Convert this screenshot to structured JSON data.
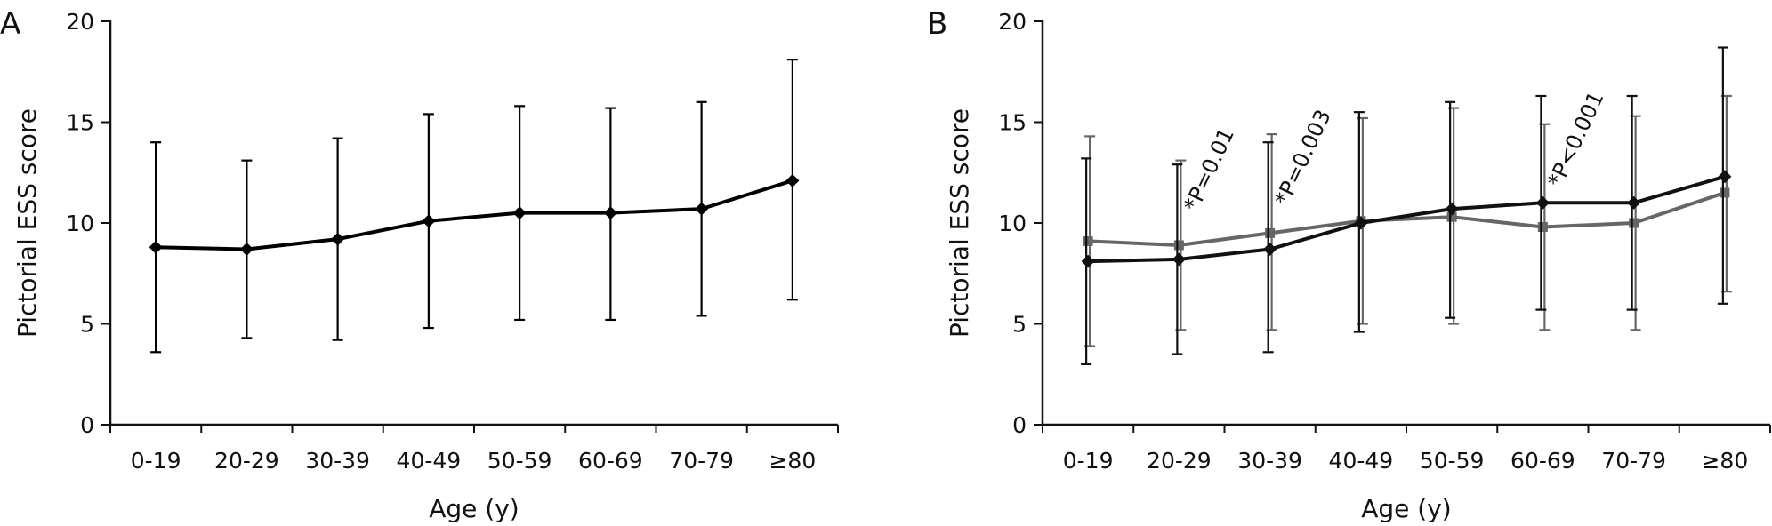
{
  "chart_data": [
    {
      "type": "line",
      "panel_label": "A",
      "xlabel": "Age (y)",
      "ylabel": "Pictorial ESS score",
      "ylim": [
        0,
        20
      ],
      "yticks": [
        "0",
        "5",
        "10",
        "15",
        "20"
      ],
      "categories": [
        "0-19",
        "20-29",
        "30-39",
        "40-49",
        "50-59",
        "60-69",
        "70-79",
        "≥80"
      ],
      "series": [
        {
          "color": "#000000",
          "marker": "diamond",
          "values": [
            8.8,
            8.7,
            9.2,
            10.1,
            10.5,
            10.5,
            10.7,
            12.1
          ],
          "error_low": [
            3.6,
            4.3,
            4.2,
            4.8,
            5.2,
            5.2,
            5.4,
            6.2
          ],
          "error_high": [
            14.0,
            13.1,
            14.2,
            15.4,
            15.8,
            15.7,
            16.0,
            18.1
          ]
        }
      ],
      "annotations": []
    },
    {
      "type": "line",
      "panel_label": "B",
      "xlabel": "Age (y)",
      "ylabel": "Pictorial ESS score",
      "ylim": [
        0,
        20
      ],
      "yticks": [
        "0",
        "5",
        "10",
        "15",
        "20"
      ],
      "categories": [
        "0-19",
        "20-29",
        "30-39",
        "40-49",
        "50-59",
        "60-69",
        "70-79",
        "≥80"
      ],
      "series": [
        {
          "color": "#111111",
          "marker": "diamond",
          "values": [
            8.1,
            8.2,
            8.7,
            10.0,
            10.7,
            11.0,
            11.0,
            12.3
          ],
          "error_low": [
            3.0,
            3.5,
            3.6,
            4.6,
            5.3,
            5.7,
            5.7,
            6.0
          ],
          "error_high": [
            13.2,
            12.9,
            14.0,
            15.5,
            16.0,
            16.3,
            16.3,
            18.7
          ]
        },
        {
          "color": "#666666",
          "marker": "square",
          "values": [
            9.1,
            8.9,
            9.5,
            10.1,
            10.3,
            9.8,
            10.0,
            11.5
          ],
          "error_low": [
            3.9,
            4.7,
            4.7,
            5.0,
            5.0,
            4.7,
            4.7,
            6.6
          ],
          "error_high": [
            14.3,
            13.1,
            14.4,
            15.2,
            15.7,
            14.9,
            15.3,
            16.3
          ]
        }
      ],
      "annotations": [
        {
          "text": "*P=0.01",
          "category_index": 1,
          "y": 10.5
        },
        {
          "text": "*P=0.003",
          "category_index": 2,
          "y": 10.8
        },
        {
          "text": "*P<0.001",
          "category_index": 5,
          "y": 11.7
        }
      ]
    }
  ]
}
